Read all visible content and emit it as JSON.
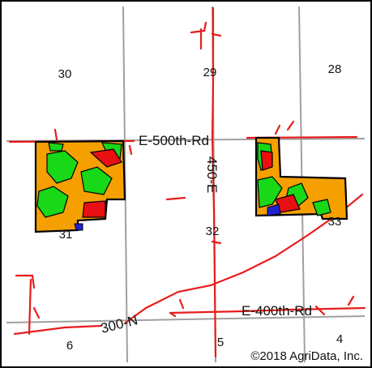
{
  "map": {
    "sections": {
      "s30": "30",
      "s29": "29",
      "s28": "28",
      "s31": "31",
      "s32": "32",
      "s33": "33",
      "s6": "6",
      "s5": "5",
      "s4": "4"
    },
    "roads": {
      "e500": "E-500th-Rd",
      "e450": "450-E",
      "n300": "300-N",
      "e400": "E-400th-Rd"
    },
    "copyright": "©2018 AgriData, Inc.",
    "colors": {
      "road": "#e81c1c",
      "section_line": "#a0a0a0",
      "field_orange": "#f5a000",
      "field_green": "#18d818",
      "field_red": "#e81010",
      "field_blue": "#2020d0",
      "field_outline": "#000000"
    }
  }
}
